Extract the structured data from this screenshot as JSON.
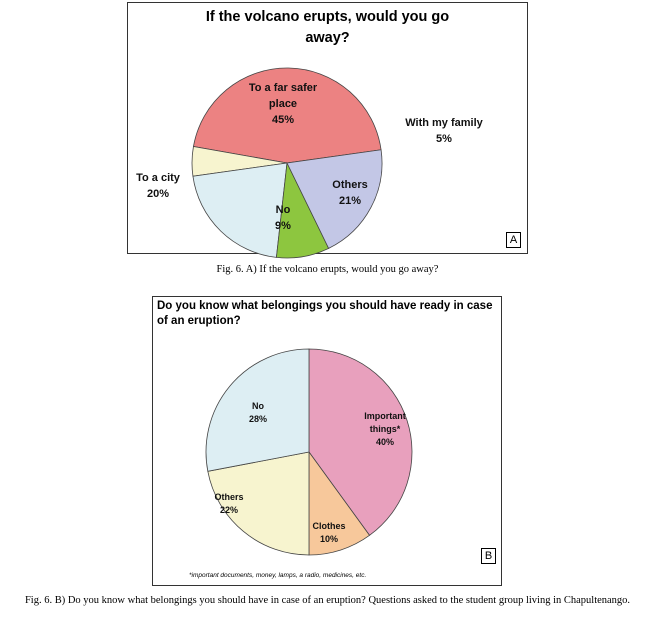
{
  "chart_data": [
    {
      "type": "pie",
      "panel_mark": "A",
      "title": "If the volcano erupts, would you go away?",
      "slices": [
        {
          "label": "To a far safer place",
          "label_lines": [
            "To a far safer",
            "place"
          ],
          "percent_text": "45%",
          "value": 45,
          "color": "#ec8282"
        },
        {
          "label": "With my family",
          "label_lines": [
            "With my family"
          ],
          "percent_text": "5%",
          "value": 5,
          "color": "#f7f4cf"
        },
        {
          "label": "Others",
          "label_lines": [
            "Others"
          ],
          "percent_text": "21%",
          "value": 21,
          "color": "#ddeef3"
        },
        {
          "label": "No",
          "label_lines": [
            "No"
          ],
          "percent_text": "9%",
          "value": 9,
          "color": "#8dc63f"
        },
        {
          "label": "To a city",
          "label_lines": [
            "To a city"
          ],
          "percent_text": "20%",
          "value": 20,
          "color": "#c3c7e6"
        }
      ]
    },
    {
      "type": "pie",
      "panel_mark": "B",
      "title": "Do you know what belongings you should have ready in case of an eruption?",
      "footnote": "*important documents, money, lamps, a radio, medicines, etc.",
      "slices": [
        {
          "label": "Important things*",
          "label_lines": [
            "Important",
            "things*"
          ],
          "percent_text": "40%",
          "value": 40,
          "color": "#e8a0bd"
        },
        {
          "label": "Clothes",
          "label_lines": [
            "Clothes"
          ],
          "percent_text": "10%",
          "value": 10,
          "color": "#f7c89b"
        },
        {
          "label": "Others",
          "label_lines": [
            "Others"
          ],
          "percent_text": "22%",
          "value": 22,
          "color": "#f7f4cf"
        },
        {
          "label": "No",
          "label_lines": [
            "No"
          ],
          "percent_text": "28%",
          "value": 28,
          "color": "#ddeef3"
        }
      ]
    }
  ],
  "captions": {
    "a": "Fig. 6. A) If the volcano erupts, would you go away?",
    "b": "Fig. 6. B) Do you know what belongings you should have in case of an eruption? Questions asked to the student group living in Chapultenango."
  }
}
